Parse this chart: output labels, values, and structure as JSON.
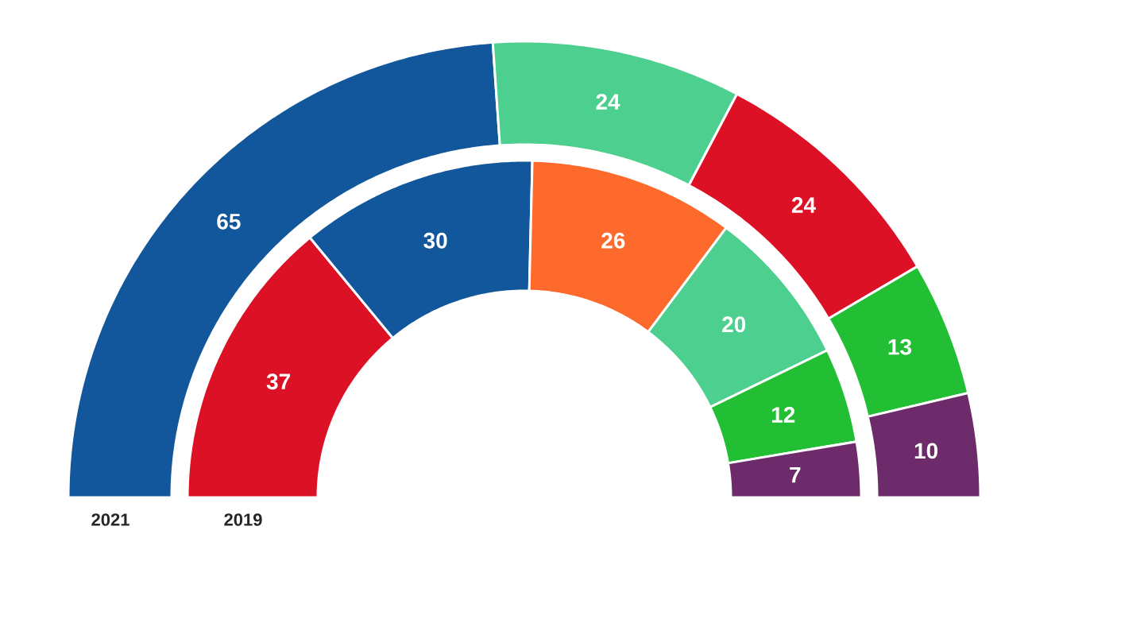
{
  "chart_data": [
    {
      "type": "donut",
      "title": "2021",
      "categories": [
        null,
        null,
        null,
        null,
        null
      ],
      "values": [
        65,
        24,
        24,
        13,
        10
      ],
      "colors": [
        "#12579b",
        "#4ccf8f",
        "#dd1126",
        "#22bf34",
        "#6e2b6b"
      ],
      "data_labels": true
    },
    {
      "type": "donut",
      "title": "2019",
      "categories": [
        null,
        null,
        null,
        null,
        null,
        null
      ],
      "values": [
        37,
        30,
        26,
        20,
        12,
        7
      ],
      "colors": [
        "#dd1126",
        "#12579b",
        "#fd6a2c",
        "#4ccf8f",
        "#22bf34",
        "#6e2b6b"
      ],
      "data_labels": true
    }
  ]
}
